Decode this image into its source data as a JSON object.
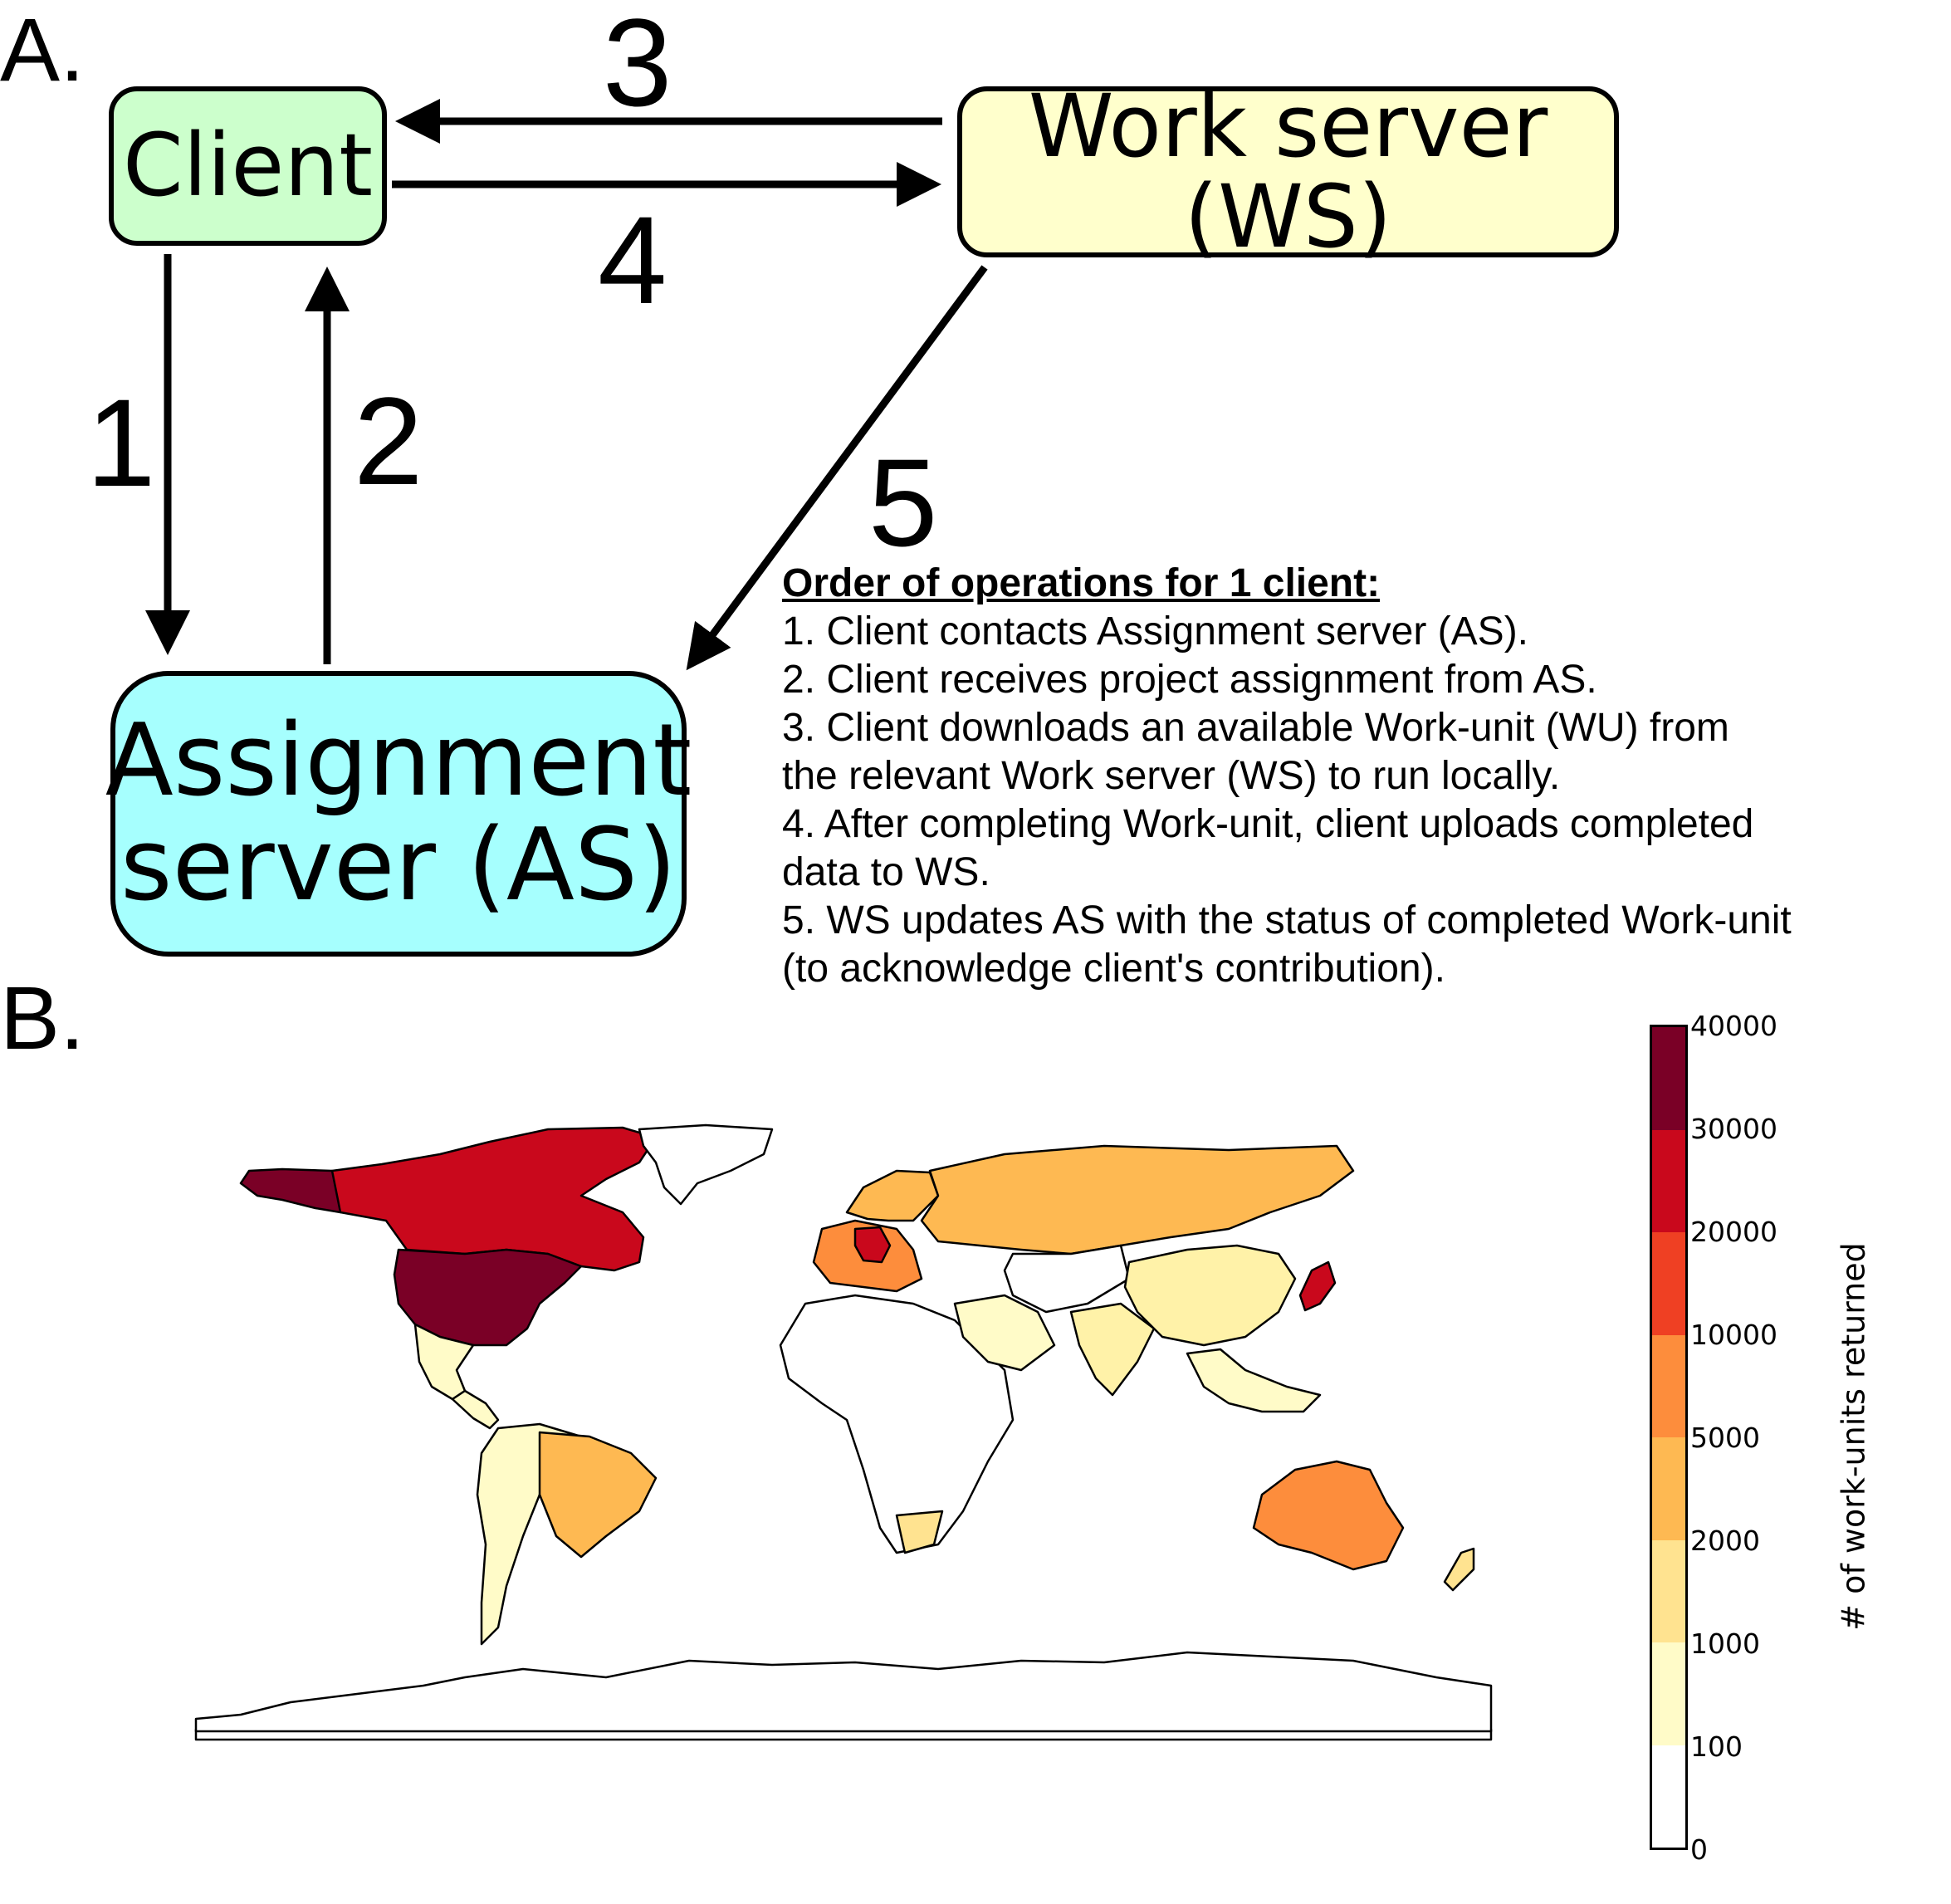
{
  "panel_a": {
    "letter": "A.",
    "nodes": {
      "client": {
        "label": "Client",
        "color": "#ccffcc"
      },
      "work_server": {
        "label": "Work server (WS)",
        "color": "#ffffcc"
      },
      "assignment_server": {
        "label_line1": "Assignment",
        "label_line2": "server (AS)",
        "color": "#a6fffe"
      }
    },
    "arrow_labels": {
      "a1": "1",
      "a2": "2",
      "a3": "3",
      "a4": "4",
      "a5": "5"
    },
    "order": {
      "heading": "Order of operations for 1 client:",
      "lines": [
        "1. Client contacts Assignment server (AS).",
        "2. Client receives project assignment from AS.",
        "3. Client downloads an available Work-unit (WU) from",
        "the relevant Work server (WS) to run locally.",
        "4. After completing Work-unit, client uploads completed",
        "data to WS.",
        "5. WS updates AS with the status of completed Work-unit",
        "(to acknowledge client's contribution)."
      ]
    }
  },
  "panel_b": {
    "letter": "B.",
    "map_regions": [
      {
        "icon": "north-america-region",
        "color": "#c9081c"
      },
      {
        "icon": "alaska-region",
        "color": "#7a0026"
      },
      {
        "icon": "usa-region",
        "color": "#7a0026"
      },
      {
        "icon": "mexico-region",
        "color": "#fffbc8"
      },
      {
        "icon": "central-america-region",
        "color": "#fffbc8"
      },
      {
        "icon": "greenland-region",
        "color": "#ffffff"
      },
      {
        "icon": "south-america-region",
        "color": "#fffbc8"
      },
      {
        "icon": "brazil-region",
        "color": "#feb952"
      },
      {
        "icon": "europe-region",
        "color": "#fd8d3c"
      },
      {
        "icon": "germany-region",
        "color": "#c9081c"
      },
      {
        "icon": "scandinavia-region",
        "color": "#feb952"
      },
      {
        "icon": "russia-region",
        "color": "#feb952"
      },
      {
        "icon": "africa-region",
        "color": "#ffffff"
      },
      {
        "icon": "south-africa-region",
        "color": "#ffe390"
      },
      {
        "icon": "middle-east-region",
        "color": "#fffbc8"
      },
      {
        "icon": "central-asia-region",
        "color": "#ffffff"
      },
      {
        "icon": "india-region",
        "color": "#fff2a8"
      },
      {
        "icon": "china-region",
        "color": "#fff2a8"
      },
      {
        "icon": "japan-region",
        "color": "#c9081c"
      },
      {
        "icon": "southeast-asia-region",
        "color": "#fffbc8"
      },
      {
        "icon": "australia-region",
        "color": "#fd8d3c"
      },
      {
        "icon": "new-zealand-region",
        "color": "#ffe390"
      },
      {
        "icon": "antarctica-region",
        "color": "#ffffff"
      }
    ],
    "colorbar": {
      "label": "# of work-units returned",
      "ticks": [
        "40000",
        "30000",
        "20000",
        "10000",
        "5000",
        "2000",
        "1000",
        "100",
        "0"
      ],
      "colors": [
        "#7a0026",
        "#c9081c",
        "#ef4023",
        "#fd8d3c",
        "#feb952",
        "#ffe390",
        "#fffbc8",
        "#ffffff"
      ]
    }
  }
}
